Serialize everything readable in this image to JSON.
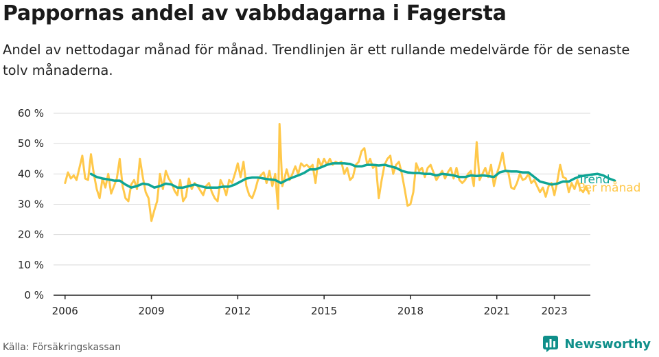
{
  "title": "Pappornas andel av vabbdagarna i Fagersta",
  "subtitle": "Andel av nettodagar månad för månad. Trendlinjen är ett rullande medelvärde för de senaste tolv månaderna.",
  "source": "Källa: Försäkringskassan",
  "brand": "Newsworthy",
  "colors": {
    "monthly": "#ffc84a",
    "trend": "#0fa595",
    "trend_label": "#0fa595",
    "monthly_label": "#ffc84a",
    "grid": "#d9d9d9",
    "axis": "#222222",
    "brand": "#0f8f8a"
  },
  "chart_data": {
    "type": "line",
    "ylim": [
      0,
      60
    ],
    "yticks": [
      0,
      10,
      20,
      30,
      40,
      50,
      60
    ],
    "ytick_labels": [
      "0 %",
      "10 %",
      "20 %",
      "30 %",
      "40 %",
      "50 %",
      "60 %"
    ],
    "xlim": [
      2005.6,
      2024.25
    ],
    "xticks": [
      2006,
      2009,
      2012,
      2015,
      2018,
      2021,
      2023
    ],
    "xtick_labels": [
      "2006",
      "2009",
      "2012",
      "2015",
      "2018",
      "2021",
      "2023"
    ],
    "grid": true,
    "series": [
      {
        "name": "Per månad",
        "color": "#ffc84a",
        "points": [
          [
            2006.0,
            37
          ],
          [
            2006.1,
            40.5
          ],
          [
            2006.2,
            38.5
          ],
          [
            2006.3,
            39.5
          ],
          [
            2006.4,
            38
          ],
          [
            2006.5,
            42
          ],
          [
            2006.6,
            46
          ],
          [
            2006.7,
            38.5
          ],
          [
            2006.8,
            38
          ],
          [
            2006.9,
            46.5
          ],
          [
            2007.0,
            40
          ],
          [
            2007.1,
            35
          ],
          [
            2007.2,
            32
          ],
          [
            2007.3,
            38.5
          ],
          [
            2007.4,
            35.5
          ],
          [
            2007.5,
            40
          ],
          [
            2007.6,
            33.5
          ],
          [
            2007.7,
            36
          ],
          [
            2007.8,
            38.5
          ],
          [
            2007.9,
            45
          ],
          [
            2008.0,
            36
          ],
          [
            2008.1,
            32
          ],
          [
            2008.2,
            31
          ],
          [
            2008.3,
            36.5
          ],
          [
            2008.4,
            38
          ],
          [
            2008.5,
            35
          ],
          [
            2008.6,
            45
          ],
          [
            2008.7,
            39
          ],
          [
            2008.8,
            34
          ],
          [
            2008.9,
            32
          ],
          [
            2009.0,
            24.5
          ],
          [
            2009.1,
            28
          ],
          [
            2009.2,
            31
          ],
          [
            2009.3,
            40
          ],
          [
            2009.4,
            35
          ],
          [
            2009.5,
            41
          ],
          [
            2009.6,
            38.5
          ],
          [
            2009.7,
            37
          ],
          [
            2009.8,
            34.5
          ],
          [
            2009.9,
            33
          ],
          [
            2010.0,
            38
          ],
          [
            2010.1,
            31
          ],
          [
            2010.2,
            32.5
          ],
          [
            2010.3,
            38.5
          ],
          [
            2010.4,
            35
          ],
          [
            2010.5,
            37
          ],
          [
            2010.6,
            36
          ],
          [
            2010.7,
            34.5
          ],
          [
            2010.8,
            33
          ],
          [
            2010.9,
            36
          ],
          [
            2011.0,
            37
          ],
          [
            2011.1,
            34
          ],
          [
            2011.2,
            32
          ],
          [
            2011.3,
            31
          ],
          [
            2011.4,
            38
          ],
          [
            2011.5,
            36
          ],
          [
            2011.6,
            33
          ],
          [
            2011.7,
            38
          ],
          [
            2011.8,
            37
          ],
          [
            2011.9,
            40
          ],
          [
            2012.0,
            43.5
          ],
          [
            2012.1,
            39
          ],
          [
            2012.2,
            44
          ],
          [
            2012.3,
            36
          ],
          [
            2012.4,
            33
          ],
          [
            2012.5,
            32
          ],
          [
            2012.6,
            34.5
          ],
          [
            2012.7,
            38
          ],
          [
            2012.8,
            39.5
          ],
          [
            2012.9,
            40.5
          ],
          [
            2013.0,
            37
          ],
          [
            2013.1,
            41
          ],
          [
            2013.2,
            36
          ],
          [
            2013.3,
            40
          ],
          [
            2013.4,
            28.5
          ],
          [
            2013.45,
            56.5
          ],
          [
            2013.55,
            36
          ],
          [
            2013.6,
            37.5
          ],
          [
            2013.7,
            41.5
          ],
          [
            2013.8,
            38
          ],
          [
            2013.9,
            40
          ],
          [
            2014.0,
            42.5
          ],
          [
            2014.1,
            40
          ],
          [
            2014.2,
            43.5
          ],
          [
            2014.3,
            42.5
          ],
          [
            2014.4,
            43
          ],
          [
            2014.5,
            42
          ],
          [
            2014.6,
            43
          ],
          [
            2014.7,
            37
          ],
          [
            2014.8,
            45
          ],
          [
            2014.9,
            42.5
          ],
          [
            2015.0,
            45
          ],
          [
            2015.1,
            43
          ],
          [
            2015.2,
            45
          ],
          [
            2015.3,
            43
          ],
          [
            2015.4,
            44
          ],
          [
            2015.5,
            43.5
          ],
          [
            2015.6,
            44
          ],
          [
            2015.7,
            40
          ],
          [
            2015.8,
            42
          ],
          [
            2015.9,
            38
          ],
          [
            2016.0,
            39
          ],
          [
            2016.1,
            43
          ],
          [
            2016.2,
            44
          ],
          [
            2016.3,
            47.5
          ],
          [
            2016.4,
            48.5
          ],
          [
            2016.5,
            43
          ],
          [
            2016.6,
            45
          ],
          [
            2016.7,
            42
          ],
          [
            2016.8,
            43
          ],
          [
            2016.9,
            32
          ],
          [
            2017.0,
            38
          ],
          [
            2017.1,
            43
          ],
          [
            2017.2,
            45
          ],
          [
            2017.3,
            46
          ],
          [
            2017.4,
            40
          ],
          [
            2017.5,
            43
          ],
          [
            2017.6,
            44
          ],
          [
            2017.7,
            40
          ],
          [
            2017.8,
            35
          ],
          [
            2017.9,
            29.5
          ],
          [
            2018.0,
            30
          ],
          [
            2018.1,
            34
          ],
          [
            2018.2,
            43.5
          ],
          [
            2018.3,
            41
          ],
          [
            2018.4,
            42
          ],
          [
            2018.5,
            39
          ],
          [
            2018.6,
            42
          ],
          [
            2018.7,
            43
          ],
          [
            2018.8,
            40.5
          ],
          [
            2018.9,
            38
          ],
          [
            2019.0,
            39.5
          ],
          [
            2019.1,
            41
          ],
          [
            2019.2,
            38.5
          ],
          [
            2019.3,
            40.5
          ],
          [
            2019.4,
            42
          ],
          [
            2019.5,
            38.5
          ],
          [
            2019.6,
            42
          ],
          [
            2019.7,
            38
          ],
          [
            2019.8,
            37
          ],
          [
            2019.9,
            38
          ],
          [
            2020.0,
            40
          ],
          [
            2020.1,
            41
          ],
          [
            2020.2,
            36
          ],
          [
            2020.3,
            50.5
          ],
          [
            2020.4,
            38
          ],
          [
            2020.5,
            40
          ],
          [
            2020.6,
            42
          ],
          [
            2020.7,
            39
          ],
          [
            2020.8,
            43
          ],
          [
            2020.9,
            36
          ],
          [
            2021.0,
            40
          ],
          [
            2021.1,
            43
          ],
          [
            2021.2,
            47
          ],
          [
            2021.3,
            41
          ],
          [
            2021.4,
            40.5
          ],
          [
            2021.5,
            35.5
          ],
          [
            2021.6,
            35
          ],
          [
            2021.7,
            37
          ],
          [
            2021.8,
            40
          ],
          [
            2021.9,
            38
          ],
          [
            2022.0,
            38.5
          ],
          [
            2022.1,
            40
          ],
          [
            2022.2,
            37
          ],
          [
            2022.3,
            38
          ],
          [
            2022.4,
            36
          ],
          [
            2022.5,
            34
          ],
          [
            2022.6,
            35.5
          ],
          [
            2022.7,
            32.5
          ],
          [
            2022.8,
            36
          ],
          [
            2022.9,
            37
          ],
          [
            2023.0,
            33
          ],
          [
            2023.1,
            37.5
          ],
          [
            2023.2,
            43
          ],
          [
            2023.3,
            39
          ],
          [
            2023.4,
            38.5
          ],
          [
            2023.5,
            34
          ],
          [
            2023.6,
            37
          ],
          [
            2023.7,
            35
          ],
          [
            2023.8,
            38
          ],
          [
            2023.9,
            35
          ],
          [
            2024.0,
            34
          ],
          [
            2024.1,
            36
          ],
          [
            2024.2,
            33.5
          ]
        ]
      },
      {
        "name": "Trend",
        "color": "#0fa595",
        "points": [
          [
            2006.9,
            40
          ],
          [
            2007.1,
            39
          ],
          [
            2007.3,
            38.5
          ],
          [
            2007.5,
            38.2
          ],
          [
            2007.7,
            37.8
          ],
          [
            2007.9,
            37.8
          ],
          [
            2008.1,
            36.5
          ],
          [
            2008.3,
            35.5
          ],
          [
            2008.5,
            36
          ],
          [
            2008.7,
            36.8
          ],
          [
            2008.9,
            36.5
          ],
          [
            2009.1,
            35.5
          ],
          [
            2009.3,
            36
          ],
          [
            2009.5,
            36.8
          ],
          [
            2009.7,
            36.5
          ],
          [
            2009.9,
            35.5
          ],
          [
            2010.1,
            35.5
          ],
          [
            2010.3,
            36
          ],
          [
            2010.5,
            36.5
          ],
          [
            2010.7,
            36
          ],
          [
            2010.9,
            35.5
          ],
          [
            2011.1,
            35.5
          ],
          [
            2011.3,
            35.5
          ],
          [
            2011.5,
            35.8
          ],
          [
            2011.7,
            35.8
          ],
          [
            2011.9,
            36.5
          ],
          [
            2012.1,
            37.5
          ],
          [
            2012.3,
            38.5
          ],
          [
            2012.5,
            38.8
          ],
          [
            2012.7,
            38.8
          ],
          [
            2012.9,
            38.5
          ],
          [
            2013.1,
            38.2
          ],
          [
            2013.3,
            38
          ],
          [
            2013.5,
            37
          ],
          [
            2013.7,
            38
          ],
          [
            2013.9,
            38.8
          ],
          [
            2014.1,
            39.5
          ],
          [
            2014.3,
            40.3
          ],
          [
            2014.5,
            41.5
          ],
          [
            2014.7,
            41.5
          ],
          [
            2014.9,
            42.2
          ],
          [
            2015.1,
            43
          ],
          [
            2015.3,
            43.5
          ],
          [
            2015.5,
            43.5
          ],
          [
            2015.7,
            43.5
          ],
          [
            2015.9,
            43.3
          ],
          [
            2016.1,
            42.5
          ],
          [
            2016.3,
            42.5
          ],
          [
            2016.5,
            43
          ],
          [
            2016.7,
            43
          ],
          [
            2016.9,
            42.8
          ],
          [
            2017.1,
            43
          ],
          [
            2017.3,
            42.5
          ],
          [
            2017.5,
            42
          ],
          [
            2017.7,
            41
          ],
          [
            2017.9,
            40.5
          ],
          [
            2018.1,
            40.3
          ],
          [
            2018.3,
            40.3
          ],
          [
            2018.5,
            40
          ],
          [
            2018.7,
            40
          ],
          [
            2018.9,
            39.5
          ],
          [
            2019.1,
            40
          ],
          [
            2019.3,
            39.8
          ],
          [
            2019.5,
            39.5
          ],
          [
            2019.7,
            39
          ],
          [
            2019.9,
            39
          ],
          [
            2020.1,
            39.5
          ],
          [
            2020.3,
            39.3
          ],
          [
            2020.5,
            39.5
          ],
          [
            2020.7,
            39.3
          ],
          [
            2020.9,
            39
          ],
          [
            2021.1,
            40.5
          ],
          [
            2021.3,
            41
          ],
          [
            2021.5,
            40.8
          ],
          [
            2021.7,
            40.8
          ],
          [
            2021.9,
            40.5
          ],
          [
            2022.1,
            40.5
          ],
          [
            2022.3,
            39
          ],
          [
            2022.5,
            37.5
          ],
          [
            2022.7,
            37
          ],
          [
            2022.9,
            36.5
          ],
          [
            2023.1,
            36.8
          ],
          [
            2023.3,
            37.5
          ],
          [
            2023.5,
            37.5
          ],
          [
            2023.7,
            38.5
          ],
          [
            2023.9,
            39.2
          ],
          [
            2024.1,
            39.5
          ],
          [
            2024.3,
            39.8
          ],
          [
            2024.5,
            40
          ],
          [
            2024.7,
            39.5
          ],
          [
            2024.9,
            38.5
          ],
          [
            2025.1,
            37.8
          ]
        ]
      }
    ]
  }
}
